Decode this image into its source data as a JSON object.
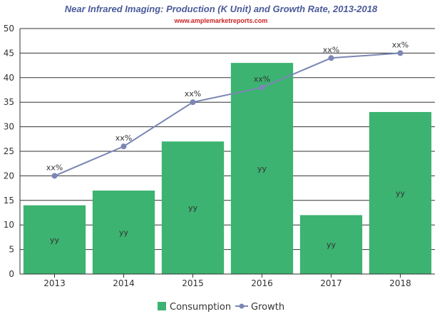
{
  "chart_data": {
    "type": "bar",
    "title": "Near Infrared Imaging: Production (K Unit) and Growth Rate, 2013-2018",
    "subtitle": "www.amplemarketreports.com",
    "categories": [
      "2013",
      "2014",
      "2015",
      "2016",
      "2017",
      "2018"
    ],
    "ylim": [
      0,
      50
    ],
    "yticks": [
      0,
      5,
      10,
      15,
      20,
      25,
      30,
      35,
      40,
      45,
      50
    ],
    "grid": true,
    "legend_position": "bottom-center",
    "series": [
      {
        "name": "Consumption",
        "kind": "bar",
        "color": "#3cb371",
        "values": [
          14,
          17,
          27,
          43,
          12,
          33
        ],
        "labels": [
          "yy",
          "yy",
          "yy",
          "yy",
          "yy",
          "yy"
        ]
      },
      {
        "name": "Growth",
        "kind": "line",
        "color": "#7b86b4",
        "values": [
          20,
          26,
          35,
          38,
          44,
          45
        ],
        "labels": [
          "xx%",
          "xx%",
          "xx%",
          "xx%",
          "xx%",
          "xx%"
        ]
      }
    ],
    "colors": {
      "title": "#4a5a9a",
      "subtitle": "#cc2222",
      "grid": "#333333"
    }
  }
}
